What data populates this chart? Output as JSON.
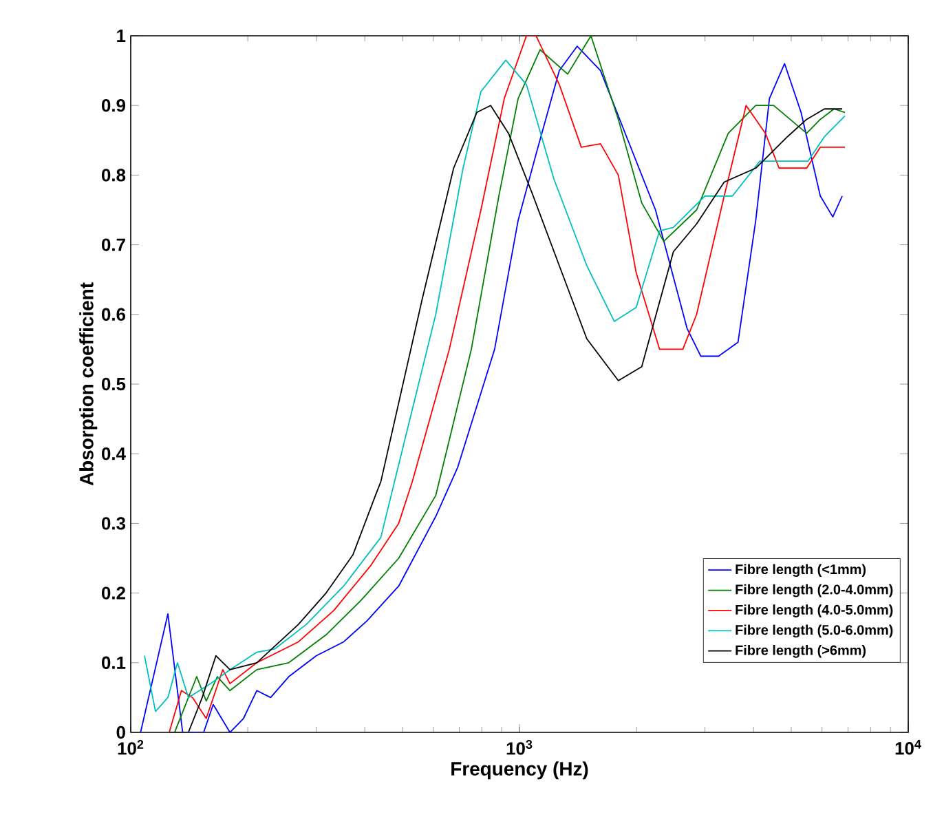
{
  "chart_data": {
    "type": "line",
    "xlabel": "Frequency (Hz)",
    "ylabel": "Absorption coefficient",
    "log": "x",
    "xlim": [
      100,
      10000
    ],
    "ylim": [
      0,
      1
    ],
    "xticks": [
      {
        "value": 100,
        "label": "10$^{2}$"
      },
      {
        "value": 1000,
        "label": "10$^{3}$"
      },
      {
        "value": 10000,
        "label": "10$^{4}$"
      }
    ],
    "yticks": [
      0,
      0.1,
      0.2,
      0.3,
      0.4,
      0.5,
      0.6,
      0.7,
      0.8,
      0.9,
      1
    ],
    "grid": false,
    "legend": "bottom right",
    "marker": "none",
    "line_style": "solid",
    "series": [
      {
        "name": "Fibre length (<1mm)",
        "color": "#0000ff",
        "x": [
          106,
          124.6,
          136,
          154,
          163,
          180,
          195,
          211,
          229,
          255,
          300,
          353,
          405,
          489,
          609,
          693,
          863,
          992,
          1103,
          1266,
          1407,
          1616,
          1901,
          2238,
          2698,
          2927,
          3251,
          3648,
          4053,
          4395,
          4808,
          5300,
          5940,
          6397,
          6765
        ],
        "values": [
          0,
          0.17,
          0,
          0,
          0.04,
          0,
          0.02,
          0.06,
          0.05,
          0.08,
          0.11,
          0.13,
          0.16,
          0.21,
          0.31,
          0.38,
          0.55,
          0.735,
          0.83,
          0.95,
          0.985,
          0.95,
          0.85,
          0.75,
          0.58,
          0.54,
          0.54,
          0.56,
          0.735,
          0.91,
          0.96,
          0.89,
          0.77,
          0.74,
          0.77
        ]
      },
      {
        "name": "Fibre length (2.0-4.0mm)",
        "color": "#007f00",
        "x": [
          129.7,
          147.8,
          156.4,
          167,
          180,
          211,
          255,
          318,
          392,
          489,
          609,
          752,
          885,
          992,
          1130,
          1330,
          1527,
          1796,
          2063,
          2350,
          2855,
          3444,
          4053,
          4505,
          5478,
          5940,
          6442,
          6875
        ],
        "values": [
          0,
          0.08,
          0.045,
          0.08,
          0.06,
          0.09,
          0.1,
          0.14,
          0.19,
          0.25,
          0.34,
          0.55,
          0.77,
          0.91,
          0.98,
          0.945,
          1.0,
          0.88,
          0.76,
          0.705,
          0.75,
          0.86,
          0.9,
          0.9,
          0.86,
          0.88,
          0.895,
          0.89
        ]
      },
      {
        "name": "Fibre length (4.0-5.0mm)",
        "color": "#ff0000",
        "x": [
          125.6,
          135,
          144.2,
          156.4,
          172.5,
          180,
          211,
          270,
          333,
          415,
          489,
          530,
          660,
          796,
          914,
          1042,
          1103,
          1266,
          1442,
          1616,
          1796,
          1996,
          2293,
          2632,
          2855,
          3362,
          3828,
          4291,
          4653,
          5478,
          5940,
          6875
        ],
        "values": [
          0,
          0.06,
          0.05,
          0.02,
          0.09,
          0.07,
          0.1,
          0.13,
          0.175,
          0.24,
          0.3,
          0.36,
          0.55,
          0.75,
          0.91,
          1.0,
          1.0,
          0.93,
          0.84,
          0.845,
          0.8,
          0.66,
          0.55,
          0.55,
          0.6,
          0.77,
          0.9,
          0.86,
          0.81,
          0.81,
          0.84,
          0.84
        ]
      },
      {
        "name": "Fibre length (5.0-6.0mm)",
        "color": "#00bfbf",
        "x": [
          108.5,
          115.8,
          124.6,
          131.9,
          140.7,
          160.3,
          180,
          211,
          235,
          283,
          353,
          440,
          477,
          609,
          716,
          796,
          922,
          1042,
          1225,
          1490,
          1753,
          1996,
          2293,
          2488,
          3000,
          3530,
          4152,
          4887,
          5520,
          6086,
          6875
        ],
        "values": [
          0.11,
          0.03,
          0.05,
          0.1,
          0.05,
          0.07,
          0.09,
          0.115,
          0.12,
          0.155,
          0.21,
          0.28,
          0.36,
          0.6,
          0.81,
          0.92,
          0.965,
          0.93,
          0.795,
          0.67,
          0.59,
          0.61,
          0.72,
          0.725,
          0.77,
          0.77,
          0.82,
          0.82,
          0.82,
          0.855,
          0.885
        ]
      },
      {
        "name": "Fibre length (>6mm)",
        "color": "#000000",
        "x": [
          125.6,
          140.7,
          152.7,
          165.6,
          180,
          211,
          270,
          318,
          373,
          426,
          440,
          561,
          677,
          777,
          843,
          937,
          1076,
          1266,
          1490,
          1796,
          2063,
          2488,
          2855,
          3362,
          4053,
          4887,
          5478,
          6086,
          6765
        ],
        "values": [
          0,
          0,
          0.05,
          0.11,
          0.09,
          0.1,
          0.155,
          0.2,
          0.255,
          0.34,
          0.36,
          0.62,
          0.81,
          0.89,
          0.9,
          0.86,
          0.775,
          0.67,
          0.565,
          0.505,
          0.525,
          0.69,
          0.73,
          0.79,
          0.81,
          0.855,
          0.88,
          0.895,
          0.895
        ]
      }
    ]
  }
}
